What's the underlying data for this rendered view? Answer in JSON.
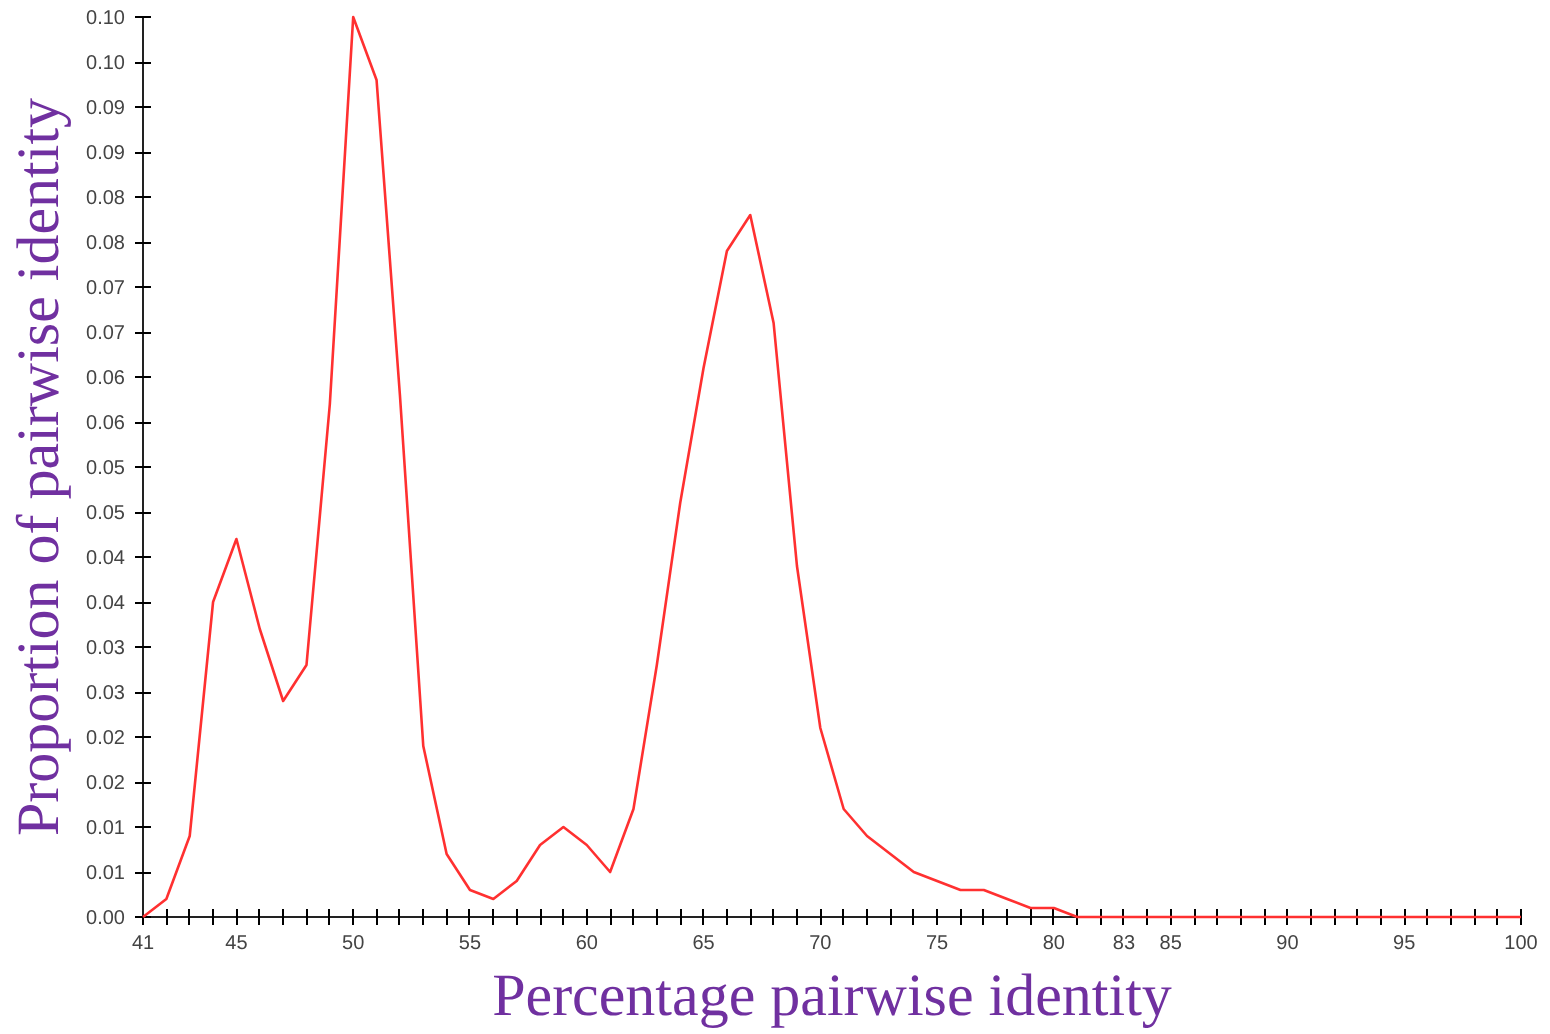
{
  "chart_data": {
    "type": "line",
    "xlabel": "Percentage pairwise identity",
    "ylabel": "Proportion of pairwise identity",
    "x": [
      41,
      42,
      43,
      44,
      45,
      46,
      47,
      48,
      49,
      50,
      51,
      52,
      53,
      54,
      55,
      56,
      57,
      58,
      59,
      60,
      61,
      62,
      63,
      64,
      65,
      66,
      67,
      68,
      69,
      70,
      71,
      72,
      73,
      74,
      75,
      76,
      77,
      78,
      79,
      80,
      81,
      82,
      83,
      84,
      85,
      86,
      87,
      88,
      89,
      90,
      91,
      92,
      93,
      94,
      95,
      96,
      97,
      98,
      99,
      100
    ],
    "series": [
      {
        "color": "#ff3030",
        "values": [
          0,
          0.002,
          0.009,
          0.035,
          0.042,
          0.032,
          0.024,
          0.028,
          0.057,
          0.1,
          0.093,
          0.058,
          0.019,
          0.007,
          0.003,
          0.002,
          0.004,
          0.008,
          0.01,
          0.008,
          0.005,
          0.012,
          0.028,
          0.046,
          0.061,
          0.074,
          0.078,
          0.066,
          0.039,
          0.021,
          0.012,
          0.009,
          0.007,
          0.005,
          0.004,
          0.003,
          0.003,
          0.002,
          0.001,
          0.001,
          0,
          0,
          0,
          0,
          0,
          0,
          0,
          0,
          0,
          0,
          0,
          0,
          0,
          0,
          0,
          0,
          0,
          0,
          0,
          0
        ]
      }
    ],
    "xlim": [
      41,
      100
    ],
    "ylim": [
      0,
      0.1
    ],
    "xticks": [
      41,
      {
        "value": 42,
        "label": null
      },
      {
        "value": 43,
        "label": null
      },
      {
        "value": 44,
        "label": null
      },
      45,
      {
        "value": 46,
        "label": null
      },
      {
        "value": 47,
        "label": null
      },
      {
        "value": 48,
        "label": null
      },
      {
        "value": 49,
        "label": null
      },
      50,
      {
        "value": 51,
        "label": null
      },
      {
        "value": 52,
        "label": null
      },
      {
        "value": 53,
        "label": null
      },
      {
        "value": 54,
        "label": null
      },
      55,
      {
        "value": 56,
        "label": null
      },
      {
        "value": 57,
        "label": null
      },
      {
        "value": 58,
        "label": null
      },
      {
        "value": 59,
        "label": null
      },
      60,
      {
        "value": 61,
        "label": null
      },
      {
        "value": 62,
        "label": null
      },
      {
        "value": 63,
        "label": null
      },
      {
        "value": 64,
        "label": null
      },
      65,
      {
        "value": 66,
        "label": null
      },
      {
        "value": 67,
        "label": null
      },
      {
        "value": 68,
        "label": null
      },
      {
        "value": 69,
        "label": null
      },
      70,
      {
        "value": 71,
        "label": null
      },
      {
        "value": 72,
        "label": null
      },
      {
        "value": 73,
        "label": null
      },
      {
        "value": 74,
        "label": null
      },
      75,
      {
        "value": 76,
        "label": null
      },
      {
        "value": 77,
        "label": null
      },
      {
        "value": 78,
        "label": null
      },
      {
        "value": 79,
        "label": null
      },
      80,
      {
        "value": 81,
        "label": null
      },
      {
        "value": 82,
        "label": null
      },
      83,
      {
        "value": 84,
        "label": null
      },
      85,
      {
        "value": 86,
        "label": null
      },
      {
        "value": 87,
        "label": null
      },
      {
        "value": 88,
        "label": null
      },
      {
        "value": 89,
        "label": null
      },
      90,
      {
        "value": 91,
        "label": null
      },
      {
        "value": 92,
        "label": null
      },
      {
        "value": 93,
        "label": null
      },
      {
        "value": 94,
        "label": null
      },
      95,
      {
        "value": 96,
        "label": null
      },
      {
        "value": 97,
        "label": null
      },
      {
        "value": 98,
        "label": null
      },
      {
        "value": 99,
        "label": null
      },
      100
    ],
    "yticks": [
      {
        "value": 0,
        "label": "0.00"
      },
      {
        "value": 0.005,
        "label": "0.01"
      },
      {
        "value": 0.01,
        "label": "0.01"
      },
      {
        "value": 0.015,
        "label": "0.02"
      },
      {
        "value": 0.02,
        "label": "0.02"
      },
      {
        "value": 0.025,
        "label": "0.03"
      },
      {
        "value": 0.03,
        "label": "0.03"
      },
      {
        "value": 0.035,
        "label": "0.04"
      },
      {
        "value": 0.04,
        "label": "0.04"
      },
      {
        "value": 0.045,
        "label": "0.05"
      },
      {
        "value": 0.05,
        "label": "0.05"
      },
      {
        "value": 0.055,
        "label": "0.06"
      },
      {
        "value": 0.06,
        "label": "0.06"
      },
      {
        "value": 0.065,
        "label": "0.07"
      },
      {
        "value": 0.07,
        "label": "0.07"
      },
      {
        "value": 0.075,
        "label": "0.08"
      },
      {
        "value": 0.08,
        "label": "0.08"
      },
      {
        "value": 0.085,
        "label": "0.09"
      },
      {
        "value": 0.09,
        "label": "0.09"
      },
      {
        "value": 0.095,
        "label": "0.10"
      },
      {
        "value": 0.1,
        "label": "0.10"
      }
    ],
    "grid": false,
    "marker": "none",
    "line_style": "solid"
  }
}
